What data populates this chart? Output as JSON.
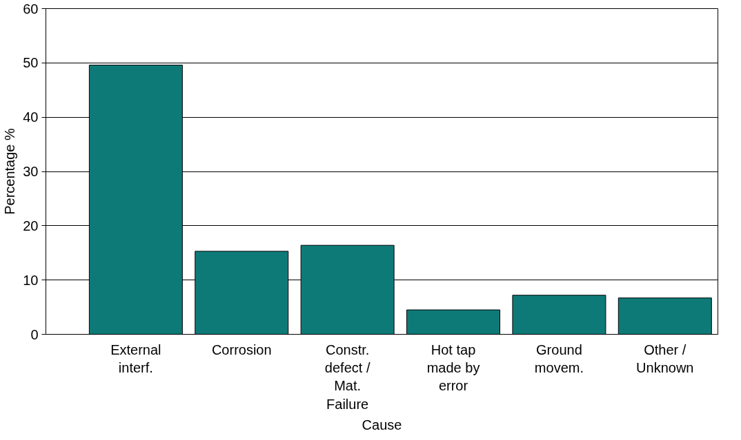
{
  "chart_data": {
    "type": "bar",
    "xlabel": "Cause",
    "ylabel": "Percentage %",
    "categories": [
      "External interf.",
      "Corrosion",
      "Constr. defect / Mat. Failure",
      "Hot tap made by error",
      "Ground movem.",
      "Other / Unknown"
    ],
    "values": [
      49.6,
      15.3,
      16.4,
      4.5,
      7.2,
      6.7
    ],
    "color": "#0e7a78",
    "ylim": [
      0,
      60
    ],
    "yticks": [
      0,
      10,
      20,
      30,
      40,
      50,
      60
    ],
    "grid": "y"
  }
}
